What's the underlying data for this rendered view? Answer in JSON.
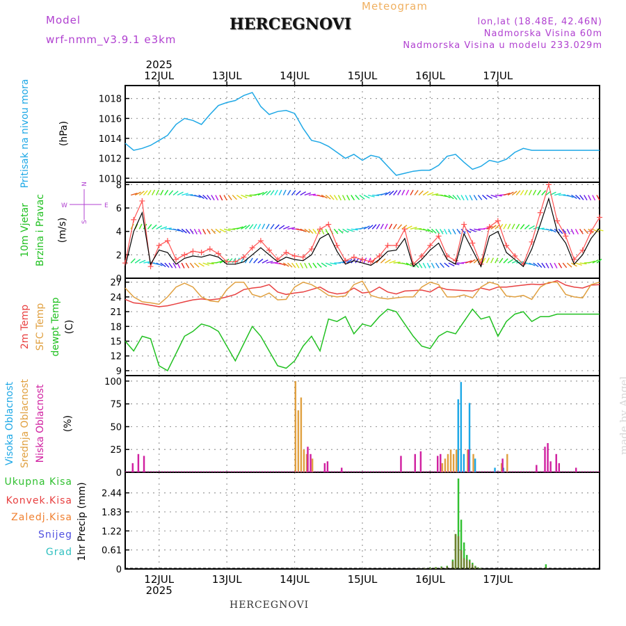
{
  "header": {
    "model_label": "Model",
    "model_name": "wrf-nmm_v3.9.1  e3km",
    "title": "HERCEGNOVI",
    "meteogram": "Meteogram",
    "lonlat": "lon,lat (18.48E, 42.46N)",
    "altitude": "Nadmorska Visina 60m",
    "model_altitude": "Nadmorska Visina u modelu 233.029m"
  },
  "footer": {
    "station": "HERCEGNOVI",
    "made_by": "made by Angel"
  },
  "colors": {
    "pressure": "#1ea8e6",
    "wind_speed": "#000000",
    "wind_gust": "#ff5050",
    "temp2m": "#e84040",
    "sfc": "#e0a040",
    "dewpt": "#20c020",
    "high_cloud": "#1ea8e6",
    "mid_cloud": "#e0a040",
    "low_cloud": "#d020a0",
    "total_precip": "#30c030",
    "conv_precip": "#e84040",
    "frozen": "#f08030",
    "snow": "#5050e0",
    "graupel": "#30c0c0",
    "axis_label_pressure": "#1ea8e6",
    "axis_label_wind": "#20c020",
    "wind_dir_icon": "#b040d0"
  },
  "chart_data": [
    {
      "type": "line",
      "panel": "pressure",
      "ylabel": "Pritisak na nivou mora",
      "unit": "(hPa)",
      "ylim": [
        1009.6,
        1019.3
      ],
      "yticks": [
        1010,
        1012,
        1014,
        1016,
        1018
      ],
      "x": [
        0,
        3,
        6,
        9,
        12,
        15,
        18,
        21,
        24,
        27,
        30,
        33,
        36,
        39,
        42,
        45,
        48,
        51,
        54,
        57,
        60,
        63,
        66,
        69,
        72,
        75,
        78,
        81,
        84,
        87,
        90,
        93,
        96,
        99,
        102,
        105,
        108,
        111,
        114,
        117,
        120,
        123,
        126,
        129,
        132,
        135,
        138,
        141,
        144,
        147,
        150,
        153,
        156,
        159,
        162,
        165,
        168
      ],
      "series": [
        {
          "name": "Pressure",
          "values": [
            1013.5,
            1012.8,
            1013.0,
            1013.3,
            1013.8,
            1014.3,
            1015.4,
            1016.0,
            1015.8,
            1015.4,
            1016.4,
            1017.3,
            1017.6,
            1017.8,
            1018.3,
            1018.6,
            1017.2,
            1016.4,
            1016.7,
            1016.8,
            1016.5,
            1015.0,
            1013.8,
            1013.6,
            1013.2,
            1012.6,
            1012.0,
            1012.4,
            1011.8,
            1012.3,
            1012.1,
            1011.2,
            1010.3,
            1010.5,
            1010.7,
            1010.8,
            1010.8,
            1011.3,
            1012.2,
            1012.4,
            1011.6,
            1010.9,
            1011.2,
            1011.8,
            1011.6,
            1011.9,
            1012.6,
            1013.0,
            1012.8,
            1012.8,
            1012.8,
            1012.8,
            1012.8,
            1012.8,
            1012.8,
            1012.8,
            1012.8
          ]
        }
      ]
    },
    {
      "type": "line",
      "panel": "wind",
      "ylabel": [
        "10m Vjetar",
        "Brzina i Pravac"
      ],
      "unit": "(m/s)",
      "direction_labels": {
        "w": "W",
        "n": "N",
        "e": "E",
        "s": "S"
      },
      "ylim": [
        0,
        8.2
      ],
      "yticks": [
        0,
        2,
        4,
        6,
        8
      ],
      "x": [
        0,
        3,
        6,
        9,
        12,
        15,
        18,
        21,
        24,
        27,
        30,
        33,
        36,
        39,
        42,
        45,
        48,
        51,
        54,
        57,
        60,
        63,
        66,
        69,
        72,
        75,
        78,
        81,
        84,
        87,
        90,
        93,
        96,
        99,
        102,
        105,
        108,
        111,
        114,
        117,
        120,
        123,
        126,
        129,
        132,
        135,
        138,
        141,
        144,
        147,
        150,
        153,
        156,
        159,
        162,
        165,
        168
      ],
      "series": [
        {
          "name": "Wind speed",
          "values": [
            1.0,
            4.0,
            5.6,
            1.2,
            2.4,
            2.2,
            1.2,
            1.7,
            1.9,
            1.8,
            2.0,
            1.8,
            1.2,
            1.2,
            1.4,
            2.0,
            2.6,
            2.0,
            1.4,
            1.8,
            1.6,
            1.5,
            2.0,
            3.4,
            3.8,
            2.3,
            1.2,
            1.5,
            1.3,
            1.1,
            1.6,
            2.3,
            2.4,
            3.4,
            1.0,
            1.6,
            2.4,
            3.0,
            1.6,
            1.2,
            3.8,
            2.4,
            1.0,
            3.6,
            4.0,
            2.2,
            1.6,
            1.0,
            2.5,
            4.6,
            6.8,
            4.0,
            3.0,
            1.2,
            2.0,
            3.4,
            4.3
          ]
        },
        {
          "name": "Wind gust",
          "values": [
            1.3,
            5.0,
            6.6,
            1.0,
            2.8,
            3.2,
            1.6,
            2.0,
            2.3,
            2.2,
            2.5,
            2.1,
            1.4,
            1.4,
            1.8,
            2.6,
            3.2,
            2.4,
            1.6,
            2.2,
            1.9,
            1.8,
            2.5,
            4.2,
            4.6,
            2.8,
            1.5,
            1.8,
            1.6,
            1.4,
            1.9,
            2.8,
            2.8,
            4.2,
            1.2,
            1.9,
            2.8,
            3.6,
            1.9,
            1.5,
            4.6,
            3.0,
            1.2,
            4.4,
            4.9,
            2.8,
            1.9,
            1.2,
            3.1,
            5.6,
            8.0,
            4.9,
            3.6,
            1.6,
            2.4,
            4.0,
            5.2
          ]
        }
      ]
    },
    {
      "type": "line",
      "panel": "temperature",
      "ylabel": [
        "2m Temp",
        "SFC Temp",
        "dewpt Temp"
      ],
      "unit": "(C)",
      "ylim": [
        8.0,
        27.8
      ],
      "yticks": [
        9,
        12,
        15,
        18,
        21,
        24,
        27
      ],
      "x": [
        0,
        3,
        6,
        9,
        12,
        15,
        18,
        21,
        24,
        27,
        30,
        33,
        36,
        39,
        42,
        45,
        48,
        51,
        54,
        57,
        60,
        63,
        66,
        69,
        72,
        75,
        78,
        81,
        84,
        87,
        90,
        93,
        96,
        99,
        102,
        105,
        108,
        111,
        114,
        117,
        120,
        123,
        126,
        129,
        132,
        135,
        138,
        141,
        144,
        147,
        150,
        153,
        156,
        159,
        162,
        165,
        168
      ],
      "series": [
        {
          "name": "2m Temp",
          "values": [
            23.5,
            22.8,
            22.6,
            22.3,
            22.0,
            22.2,
            22.6,
            23.0,
            23.4,
            23.6,
            23.4,
            23.6,
            24.0,
            24.5,
            25.5,
            25.8,
            26.0,
            26.5,
            25.0,
            24.5,
            24.8,
            25.0,
            25.5,
            26.0,
            25.0,
            24.6,
            24.8,
            25.8,
            24.8,
            25.0,
            26.0,
            25.0,
            24.6,
            25.2,
            25.3,
            25.4,
            25.0,
            26.0,
            25.5,
            25.4,
            25.3,
            25.2,
            25.8,
            25.4,
            26.0,
            26.0,
            26.2,
            26.4,
            26.6,
            26.5,
            26.8,
            27.3,
            26.4,
            26.0,
            25.8,
            26.4,
            26.5
          ]
        },
        {
          "name": "SFC Temp",
          "values": [
            25.8,
            24.0,
            23.0,
            22.8,
            22.5,
            24.0,
            26.0,
            26.8,
            26.0,
            24.0,
            23.2,
            23.0,
            25.5,
            27.0,
            27.0,
            24.5,
            24.0,
            24.8,
            23.4,
            23.5,
            26.0,
            27.0,
            26.5,
            25.5,
            24.3,
            24.0,
            24.2,
            26.5,
            27.2,
            24.3,
            23.8,
            23.6,
            23.8,
            24.0,
            24.0,
            26.0,
            27.0,
            26.5,
            24.0,
            24.0,
            24.4,
            23.8,
            26.0,
            27.0,
            26.5,
            24.2,
            24.0,
            24.3,
            23.5,
            26.0,
            27.0,
            27.0,
            24.5,
            24.0,
            23.8,
            26.5,
            27.0
          ]
        },
        {
          "name": "dewpt Temp",
          "values": [
            15.0,
            13.0,
            16.0,
            15.5,
            10.0,
            9.0,
            12.5,
            16.0,
            17.0,
            18.5,
            18.0,
            17.0,
            14.0,
            11.0,
            14.5,
            18.0,
            16.0,
            13.0,
            10.0,
            9.5,
            11.0,
            14.0,
            16.0,
            13.0,
            19.5,
            19.0,
            20.0,
            16.5,
            18.5,
            18.0,
            20.0,
            21.5,
            21.0,
            18.5,
            16.0,
            14.0,
            13.5,
            16.0,
            17.0,
            16.5,
            19.0,
            21.5,
            19.5,
            20.0,
            16.0,
            19.0,
            20.5,
            21.0,
            19.0,
            20.0,
            20.0,
            20.5,
            20.5,
            20.5,
            20.5,
            20.5,
            20.5
          ]
        }
      ]
    },
    {
      "type": "bar",
      "panel": "clouds",
      "ylabel": [
        "Visoka Oblacnost",
        "Srednja Oblacnost",
        "Niska Oblacnost"
      ],
      "unit": "(%)",
      "ylim": [
        0,
        106
      ],
      "yticks": [
        0,
        25,
        50,
        75,
        100
      ],
      "series": [
        {
          "name": "Visoka Oblacnost",
          "x": [
            118,
            119,
            120,
            122,
            124,
            131,
            134
          ],
          "values": [
            80,
            99,
            20,
            76,
            15,
            5,
            5
          ]
        },
        {
          "name": "Srednja Oblacnost",
          "x": [
            60,
            61,
            62,
            63,
            64,
            66,
            112,
            113,
            114,
            115,
            116,
            117,
            121,
            123,
            133,
            135
          ],
          "values": [
            100,
            68,
            82,
            25,
            20,
            15,
            10,
            15,
            20,
            25,
            20,
            25,
            25,
            20,
            10,
            20
          ]
        },
        {
          "name": "Niska Oblacnost",
          "x": [
            2,
            4,
            6,
            64,
            65,
            70,
            71,
            76,
            97,
            102,
            104,
            110,
            111,
            121,
            133,
            145,
            148,
            149,
            150,
            152,
            153,
            159
          ],
          "values": [
            10,
            20,
            18,
            28,
            20,
            10,
            12,
            5,
            18,
            20,
            23,
            18,
            20,
            25,
            15,
            8,
            28,
            32,
            12,
            20,
            10,
            5
          ]
        }
      ]
    },
    {
      "type": "bar",
      "panel": "precipitation",
      "ylabel": "1hr Precip (mm)",
      "legend": [
        "Ukupna  Kisa",
        "Konvek.Kisa",
        "Zaledj.Kisa",
        "Snijeg",
        "Grad"
      ],
      "ylim": [
        0,
        3.1
      ],
      "yticks": [
        0,
        0.61,
        1.22,
        1.83,
        2.44
      ],
      "series": [
        {
          "name": "Ukupna Kisa",
          "x": [
            104,
            106,
            108,
            110,
            112,
            114,
            116,
            117,
            118,
            119,
            120,
            121,
            122,
            123,
            124,
            125,
            126,
            149
          ],
          "values": [
            0.02,
            0.03,
            0.05,
            0.06,
            0.08,
            0.1,
            0.3,
            1.12,
            2.9,
            1.58,
            0.85,
            0.45,
            0.3,
            0.2,
            0.1,
            0.05,
            0.03,
            0.15
          ]
        },
        {
          "name": "Konvek.Kisa",
          "x": [
            104,
            106,
            108,
            110,
            112,
            114,
            116,
            117,
            118,
            119,
            120,
            121,
            122,
            123,
            124,
            125,
            126,
            149
          ],
          "values": [
            0.02,
            0.03,
            0.04,
            0.05,
            0.06,
            0.08,
            0.25,
            1.12,
            1.05,
            0.6,
            0.35,
            0.3,
            0.25,
            0.15,
            0.08,
            0.04,
            0.02,
            0.05
          ]
        }
      ]
    }
  ],
  "time_axis": {
    "year": "2025",
    "days": [
      "12JUL",
      "13JUL",
      "14JUL",
      "15JUL",
      "16JUL",
      "17JUL"
    ],
    "start_hour_of_first_day": -12,
    "total_hours": 168
  }
}
